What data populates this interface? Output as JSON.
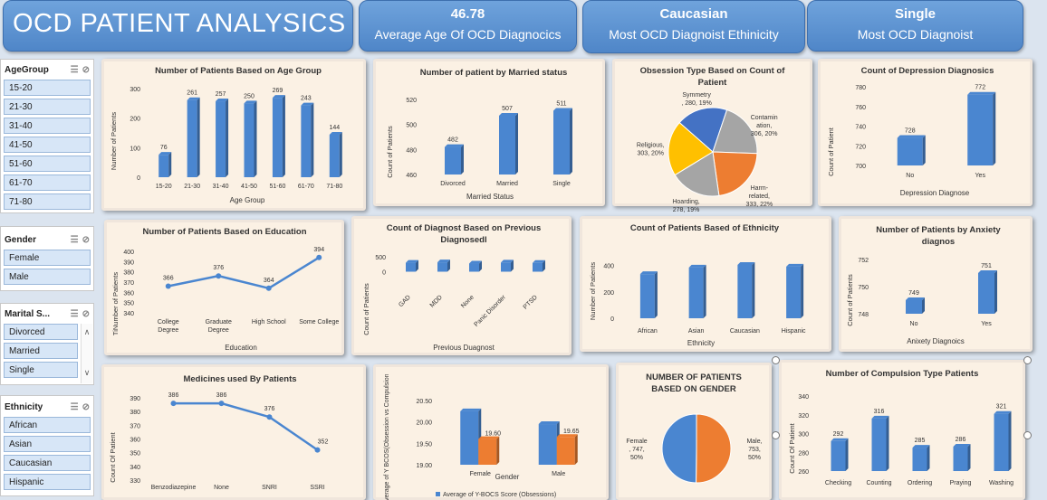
{
  "header": {
    "title": "OCD PATIENT ANALYSICS"
  },
  "kpis": [
    {
      "value": "46.78",
      "label": "Average Age Of OCD Diagnocics"
    },
    {
      "value": "Caucasian",
      "label": "Most OCD Diagnoist Ethinicity"
    },
    {
      "value": "Single",
      "label": "Most OCD Diagnoist"
    }
  ],
  "slicers": {
    "age": {
      "title": "AgeGroup",
      "items": [
        "15-20",
        "21-30",
        "31-40",
        "41-50",
        "51-60",
        "61-70",
        "71-80"
      ]
    },
    "gender": {
      "title": "Gender",
      "items": [
        "Female",
        "Male"
      ]
    },
    "marital": {
      "title": "Marital S...",
      "items": [
        "Divorced",
        "Married",
        "Single"
      ]
    },
    "ethnicity": {
      "title": "Ethnicity",
      "items": [
        "African",
        "Asian",
        "Caucasian",
        "Hispanic"
      ]
    }
  },
  "icons": [
    "multi-select-icon",
    "clear-filter-icon",
    "scroll-up-icon",
    "scroll-down-icon"
  ],
  "colors": {
    "bar": "#4a86d0",
    "orange": "#ed7d31",
    "kpi": "#5b95d6",
    "panel": "#fbf1e4"
  },
  "chart_data": [
    {
      "id": "age",
      "type": "bar",
      "title": "Number of Patients Based on Age Group",
      "xlabel": "Age Group",
      "ylabel": "Number of Patients",
      "categories": [
        "15-20",
        "21-30",
        "31-40",
        "41-50",
        "51-60",
        "61-70",
        "71-80"
      ],
      "values": [
        76,
        261,
        257,
        250,
        269,
        243,
        144
      ],
      "yticks": [
        "0",
        "100",
        "200",
        "300"
      ],
      "ylim": [
        0,
        300
      ]
    },
    {
      "id": "married",
      "type": "bar",
      "title": "Number of patient by Married status",
      "xlabel": "Married Status",
      "ylabel": "Count of Patients",
      "categories": [
        "Divorced",
        "Married",
        "Single"
      ],
      "values": [
        482,
        507,
        511
      ],
      "yticks": [
        "460",
        "480",
        "500",
        "520"
      ],
      "ylim": [
        460,
        520
      ]
    },
    {
      "id": "obsession",
      "type": "pie",
      "title": "Obsession Type Based on Count of Patient",
      "slices": [
        {
          "name": "Symmetry",
          "value": 280,
          "pct": "19%",
          "color": "#4472c4",
          "label": [
            "Symmetry",
            ", 280, 19%"
          ]
        },
        {
          "name": "Contamination",
          "value": 306,
          "pct": "20%",
          "color": "#a5a5a5",
          "label": [
            "Contamin",
            "ation,",
            "306, 20%"
          ]
        },
        {
          "name": "Harm-related",
          "value": 333,
          "pct": "22%",
          "color": "#ed7d31",
          "label": [
            "Harm-",
            "related,",
            "333, 22%"
          ]
        },
        {
          "name": "Hoarding",
          "value": 278,
          "pct": "19%",
          "color": "#a5a5a5",
          "label": [
            "Hoarding,",
            "278, 19%"
          ]
        },
        {
          "name": "Religious",
          "value": 303,
          "pct": "20%",
          "color": "#ffc000",
          "label": [
            "Religious,",
            "303, 20%"
          ]
        }
      ]
    },
    {
      "id": "depression",
      "type": "bar",
      "title": "Count of Depression Diagnosics",
      "xlabel": "Depression Diagnose",
      "ylabel": "Count of Patient",
      "categories": [
        "No",
        "Yes"
      ],
      "values": [
        728,
        772
      ],
      "yticks": [
        "700",
        "720",
        "740",
        "760",
        "780"
      ],
      "ylim": [
        700,
        780
      ]
    },
    {
      "id": "education",
      "type": "line",
      "title": "Number of Patients Based on Education",
      "xlabel": "Education",
      "ylabel": "TiNumber of Patients",
      "categories": [
        [
          "College",
          "Degree"
        ],
        [
          "Graduate",
          "Degree"
        ],
        [
          "High School"
        ],
        [
          "Some College"
        ]
      ],
      "values": [
        366,
        376,
        364,
        394
      ],
      "yticks": [
        "340",
        "350",
        "360",
        "370",
        "380",
        "390",
        "400"
      ],
      "ylim": [
        340,
        400
      ]
    },
    {
      "id": "previous",
      "type": "bar",
      "title": "Count of Diagnost Based on Previous Diagnosedl",
      "xlabel": "Previous Duagnost",
      "ylabel": "Count of Patients",
      "categories": [
        "GAD",
        "MDD",
        "None",
        "Panic Disorder",
        "PTSD"
      ],
      "values": [
        300,
        315,
        272,
        305,
        295
      ],
      "yticks": [
        "0",
        "500"
      ],
      "ylim": [
        -500,
        500
      ]
    },
    {
      "id": "ethnicity",
      "type": "bar",
      "title": "Count of Patients Based of Ethnicity",
      "xlabel": "Ethnicity",
      "ylabel": "Number of Patients",
      "categories": [
        "African",
        "Asian",
        "Caucasian",
        "Hispanic"
      ],
      "values": [
        335,
        385,
        405,
        392
      ],
      "yticks": [
        "0",
        "200",
        "400"
      ],
      "ylim": [
        0,
        480
      ]
    },
    {
      "id": "anxiety",
      "type": "bar",
      "title": "Number of Patients by Anxiety diagnos",
      "xlabel": "Anixety Diagnoics",
      "ylabel": "Count of Patients",
      "categories": [
        "No",
        "Yes"
      ],
      "values": [
        749,
        751
      ],
      "yticks": [
        "748",
        "750",
        "752"
      ],
      "ylim": [
        748,
        752
      ]
    },
    {
      "id": "medicines",
      "type": "line",
      "title": "Medicines used By Patients",
      "ylabel": "Count Of Patient",
      "categories": [
        "Benzodiazepine",
        "None",
        "SNRI",
        "SSRI"
      ],
      "values": [
        386,
        386,
        376,
        352
      ],
      "yticks": [
        "330",
        "340",
        "350",
        "360",
        "370",
        "380",
        "390"
      ],
      "ylim": [
        330,
        390
      ]
    },
    {
      "id": "ybocs",
      "type": "bar",
      "title": "",
      "xlabel": "Gender",
      "ylabel": "Average of Y BCOS(Obsession vs Compulsion",
      "categories": [
        "Female",
        "Male"
      ],
      "series": [
        {
          "name": "Average of Y-BOCS Score (Obsessions)",
          "values": [
            20.25,
            19.95
          ],
          "color": "#4a86d0"
        },
        {
          "name": "",
          "values": [
            19.6,
            19.65
          ],
          "color": "#ed7d31"
        }
      ],
      "labels": [
        "19.60",
        "19.65"
      ],
      "yticks": [
        "19.00",
        "19.50",
        "20.00",
        "20.50"
      ],
      "ylim": [
        19,
        20.5
      ]
    },
    {
      "id": "gender",
      "type": "pie",
      "title": "NUMBER OF PATIENTS BASED ON GENDER",
      "slices": [
        {
          "name": "Male",
          "value": 753,
          "pct": "50%",
          "color": "#ed7d31",
          "label": [
            "Male,",
            "753,",
            "50%"
          ]
        },
        {
          "name": "Female",
          "value": 747,
          "pct": "50%",
          "color": "#4a86d0",
          "label": [
            "Female",
            ", 747,",
            "50%"
          ]
        }
      ]
    },
    {
      "id": "compulsion",
      "type": "bar",
      "title": "Number of Compulsion Type Patients",
      "ylabel": "Count Of Patient",
      "categories": [
        "Checking",
        "Counting",
        "Ordering",
        "Praying",
        "Washing"
      ],
      "values": [
        292,
        316,
        285,
        286,
        321
      ],
      "yticks": [
        "260",
        "280",
        "300",
        "320",
        "340"
      ],
      "ylim": [
        260,
        340
      ]
    }
  ]
}
